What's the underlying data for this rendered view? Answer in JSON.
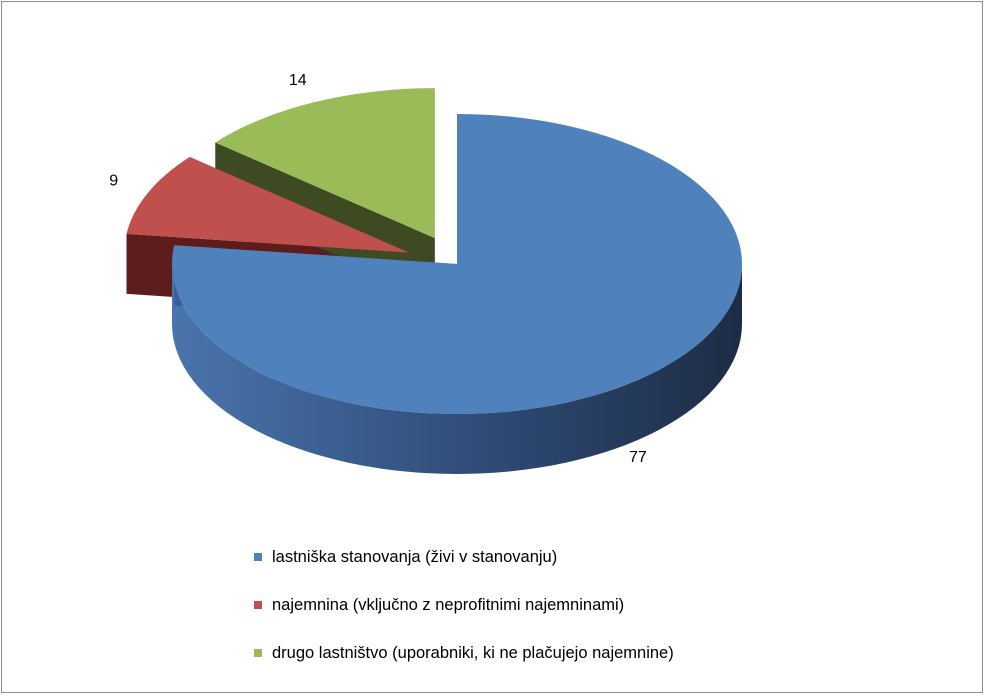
{
  "chart_data": {
    "type": "pie",
    "title": "",
    "categories": [
      "lastniška stanovanja (živi v stanovanju)",
      "najemnina (vključno z neprofitnimi najemninami)",
      "drugo lastništvo (uporabniki, ki ne plačujejo najemnine)"
    ],
    "values": [
      77,
      9,
      14
    ],
    "data_labels": [
      "77",
      "9",
      "14"
    ],
    "colors": [
      "#4F81BD",
      "#C0504D",
      "#9BBB59"
    ],
    "side_colors": [
      "#2C4770",
      "#5C1D1C",
      "#3D4A22"
    ],
    "exploded": [
      false,
      true,
      true
    ],
    "style": "3d",
    "legend_position": "bottom"
  }
}
